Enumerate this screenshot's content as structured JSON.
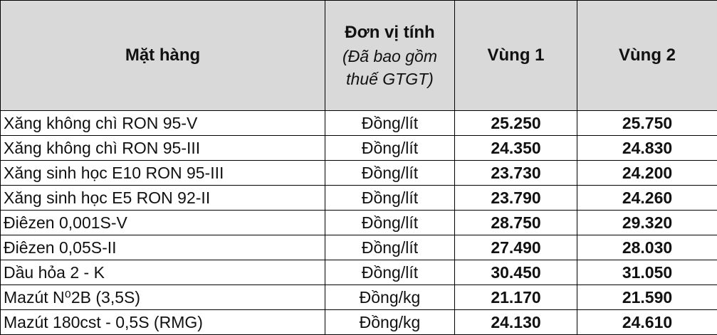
{
  "table": {
    "header": [
      "Mặt hàng",
      "Đơn vị tính",
      "(Đã bao gồm thuế GTGT)",
      "Vùng 1",
      "Vùng 2"
    ],
    "rows": [
      [
        "Xăng không chì RON 95-V",
        "Đồng/lít",
        "25.250",
        "25.750"
      ],
      [
        "Xăng không chì RON 95-III",
        "Đồng/lít",
        "24.350",
        "24.830"
      ],
      [
        "Xăng sinh học E10 RON 95-III",
        "Đồng/lít",
        "23.730",
        "24.200"
      ],
      [
        "Xăng sinh học E5 RON 92-II",
        "Đồng/lít",
        "23.790",
        "24.260"
      ],
      [
        "Điêzen 0,001S-V",
        "Đồng/lít",
        "28.750",
        "29.320"
      ],
      [
        "Điêzen 0,05S-II",
        "Đồng/lít",
        "27.490",
        "28.030"
      ],
      [
        "Dầu hỏa 2 - K",
        "Đồng/lít",
        "30.450",
        "31.050"
      ],
      [
        "Mazút N⁰2B (3,5S)",
        "Đồng/kg",
        "21.170",
        "21.590"
      ],
      [
        "Mazút 180cst - 0,5S (RMG)",
        "Đồng/kg",
        "24.130",
        "24.610"
      ]
    ]
  }
}
